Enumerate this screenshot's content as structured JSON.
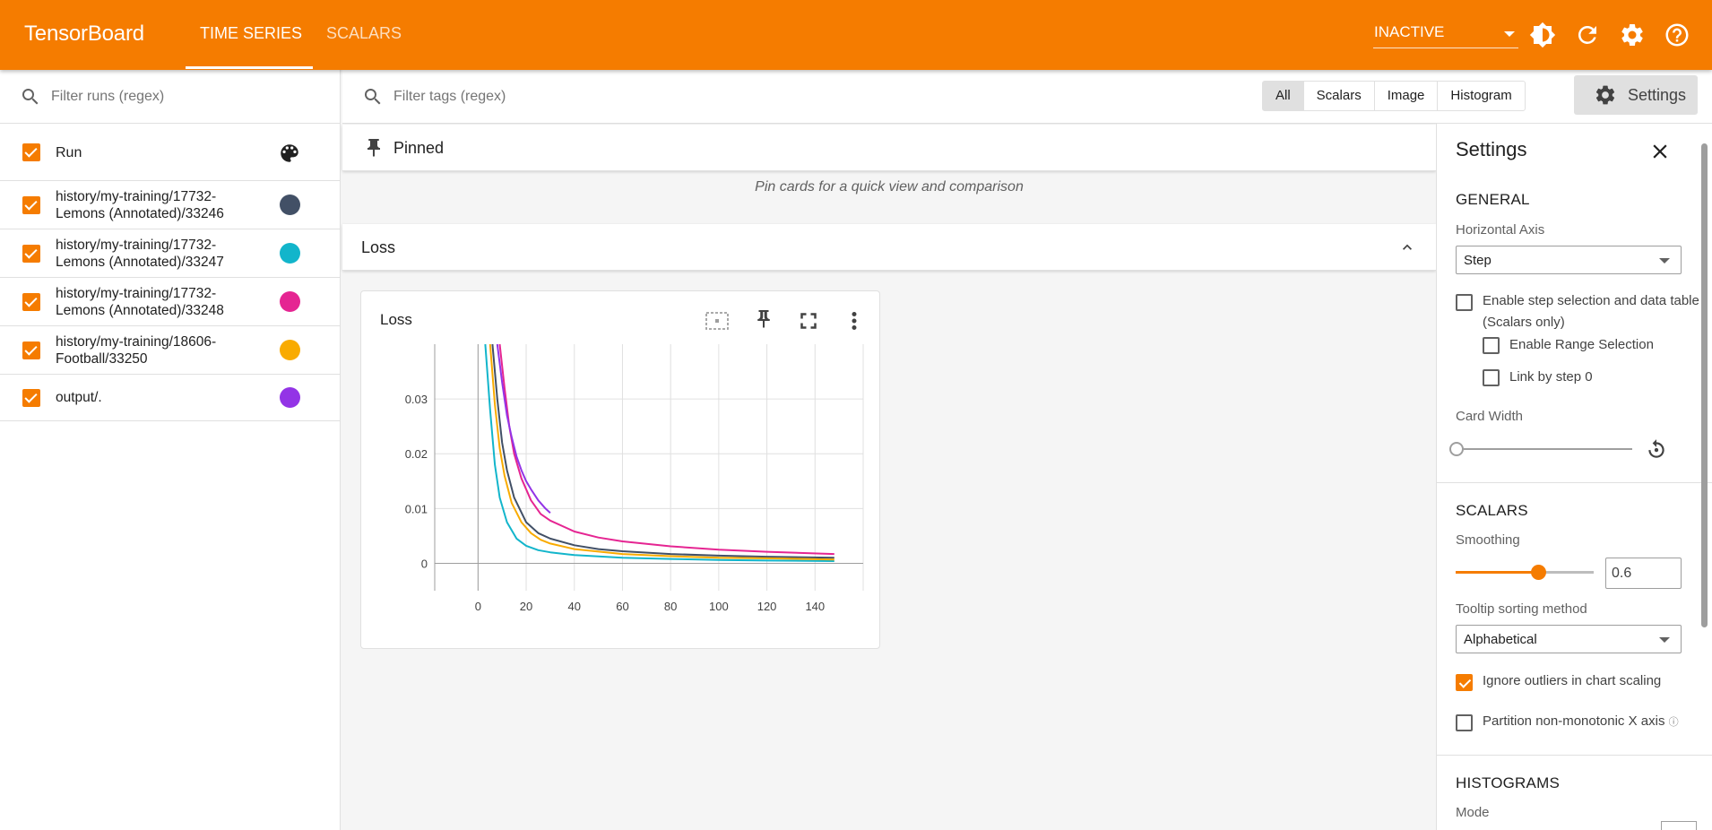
{
  "header": {
    "brand": "TensorBoard",
    "tabs": [
      {
        "label": "TIME SERIES",
        "active": true
      },
      {
        "label": "SCALARS",
        "active": false
      }
    ],
    "reload_status": "INACTIVE",
    "icons": [
      "theme-toggle-icon",
      "refresh-icon",
      "gear-icon",
      "help-icon"
    ]
  },
  "runs_panel": {
    "filter_placeholder": "Filter runs (regex)",
    "header_label": "Run",
    "runs": [
      {
        "label_line1": "history/my-training/17732-",
        "label_line2": "Lemons (Annotated)/33246",
        "color": "#425066"
      },
      {
        "label_line1": "history/my-training/17732-",
        "label_line2": "Lemons (Annotated)/33247",
        "color": "#12b5cb"
      },
      {
        "label_line1": "history/my-training/17732-",
        "label_line2": "Lemons (Annotated)/33248",
        "color": "#e52592"
      },
      {
        "label_line1": "history/my-training/18606-",
        "label_line2": "Football/33250",
        "color": "#f9ab00"
      },
      {
        "label_line1": "output/.",
        "label_line2": "",
        "color": "#9334e6"
      }
    ]
  },
  "main": {
    "tag_filter_placeholder": "Filter tags (regex)",
    "type_filters": [
      {
        "label": "All",
        "selected": true
      },
      {
        "label": "Scalars",
        "selected": false
      },
      {
        "label": "Image",
        "selected": false
      },
      {
        "label": "Histogram",
        "selected": false
      }
    ],
    "settings_button": "Settings",
    "pinned_label": "Pinned",
    "pinned_empty": "Pin cards for a quick view and comparison",
    "group_label": "Loss",
    "card_title": "Loss"
  },
  "settings": {
    "title": "Settings",
    "general_heading": "GENERAL",
    "horizontal_axis_label": "Horizontal Axis",
    "horizontal_axis_value": "Step",
    "step_selection_label_1": "Enable step selection and data table",
    "step_selection_label_2": "(Scalars only)",
    "range_selection_label": "Enable Range Selection",
    "link_by_step_label": "Link by step 0",
    "card_width_label": "Card Width",
    "scalars_heading": "SCALARS",
    "smoothing_label": "Smoothing",
    "smoothing_value": "0.6",
    "smoothing_fraction": 0.6,
    "tooltip_sort_label": "Tooltip sorting method",
    "tooltip_sort_value": "Alphabetical",
    "ignore_outliers_label": "Ignore outliers in chart scaling",
    "ignore_outliers_checked": true,
    "partition_label": "Partition non-monotonic X axis",
    "histograms_heading": "HISTOGRAMS",
    "mode_label": "Mode"
  },
  "chart_data": {
    "type": "line",
    "title": "Loss",
    "xlabel": "",
    "ylabel": "",
    "xlim": [
      -18,
      160
    ],
    "ylim": [
      -0.005,
      0.04
    ],
    "x_ticks": [
      0,
      20,
      40,
      60,
      80,
      100,
      120,
      140
    ],
    "y_ticks": [
      0,
      0.01,
      0.02,
      0.03
    ],
    "y_tick_labels": [
      "0",
      "0.01",
      "0.02",
      "0.03"
    ],
    "grid": true,
    "series": [
      {
        "color": "#425066",
        "x": [
          6,
          8,
          10,
          12,
          15,
          20,
          25,
          30,
          40,
          50,
          60,
          80,
          100,
          120,
          148
        ],
        "y": [
          0.04,
          0.03,
          0.022,
          0.017,
          0.012,
          0.0075,
          0.0055,
          0.0045,
          0.0033,
          0.0026,
          0.0022,
          0.0017,
          0.0014,
          0.0012,
          0.001
        ]
      },
      {
        "color": "#12b5cb",
        "x": [
          3,
          5,
          7,
          9,
          12,
          16,
          20,
          25,
          30,
          40,
          60,
          80,
          100,
          120,
          148
        ],
        "y": [
          0.04,
          0.028,
          0.018,
          0.012,
          0.0075,
          0.0045,
          0.0032,
          0.0024,
          0.002,
          0.0015,
          0.001,
          0.0008,
          0.0006,
          0.0005,
          0.0004
        ]
      },
      {
        "color": "#e52592",
        "x": [
          9,
          11,
          13,
          15,
          18,
          22,
          26,
          30,
          40,
          50,
          60,
          80,
          100,
          120,
          148
        ],
        "y": [
          0.04,
          0.032,
          0.025,
          0.02,
          0.0155,
          0.0115,
          0.009,
          0.0078,
          0.0058,
          0.0047,
          0.004,
          0.0031,
          0.0025,
          0.0021,
          0.0017
        ]
      },
      {
        "color": "#f9ab00",
        "x": [
          5,
          7,
          9,
          11,
          14,
          18,
          22,
          26,
          30,
          40,
          60,
          80,
          100,
          120,
          148
        ],
        "y": [
          0.04,
          0.029,
          0.021,
          0.016,
          0.011,
          0.0075,
          0.0055,
          0.0043,
          0.0036,
          0.0026,
          0.0017,
          0.0013,
          0.001,
          0.0009,
          0.0007
        ]
      },
      {
        "color": "#9334e6",
        "x": [
          8,
          10,
          12,
          14,
          16,
          18,
          20,
          22,
          25,
          28,
          30
        ],
        "y": [
          0.04,
          0.033,
          0.027,
          0.023,
          0.0195,
          0.017,
          0.015,
          0.0135,
          0.0115,
          0.01,
          0.0092
        ]
      }
    ]
  }
}
